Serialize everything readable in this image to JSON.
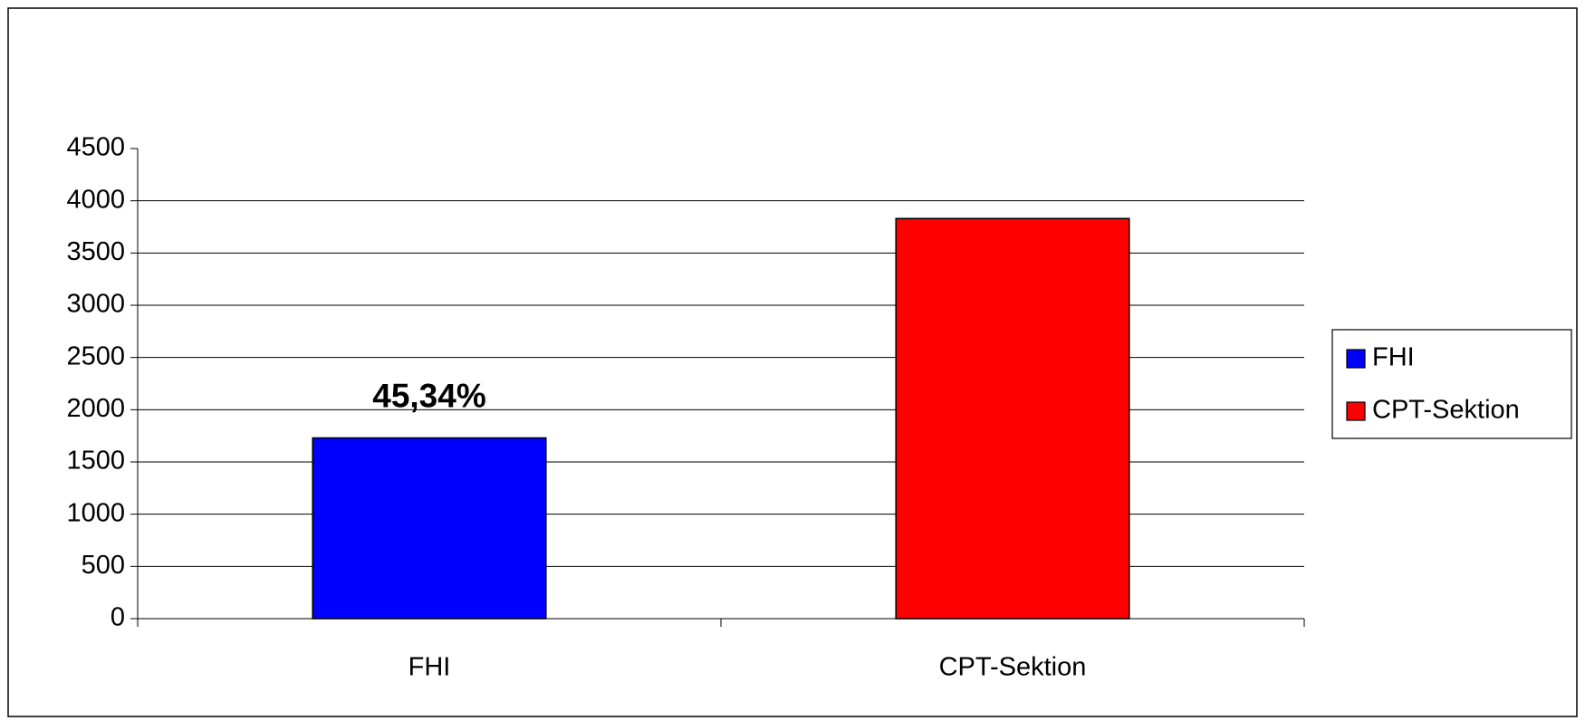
{
  "chart_data": {
    "type": "bar",
    "categories": [
      "FHI",
      "CPT-Sektion"
    ],
    "values": [
      1730,
      3830
    ],
    "colors": [
      "#0000ff",
      "#ff0000"
    ],
    "ylim": [
      0,
      4500
    ],
    "yticks": [
      0,
      500,
      1000,
      1500,
      2000,
      2500,
      3000,
      3500,
      4000,
      4500
    ],
    "grid": true,
    "legend": "right",
    "annotations": [
      {
        "text": "45,34%",
        "category": 0
      }
    ]
  }
}
